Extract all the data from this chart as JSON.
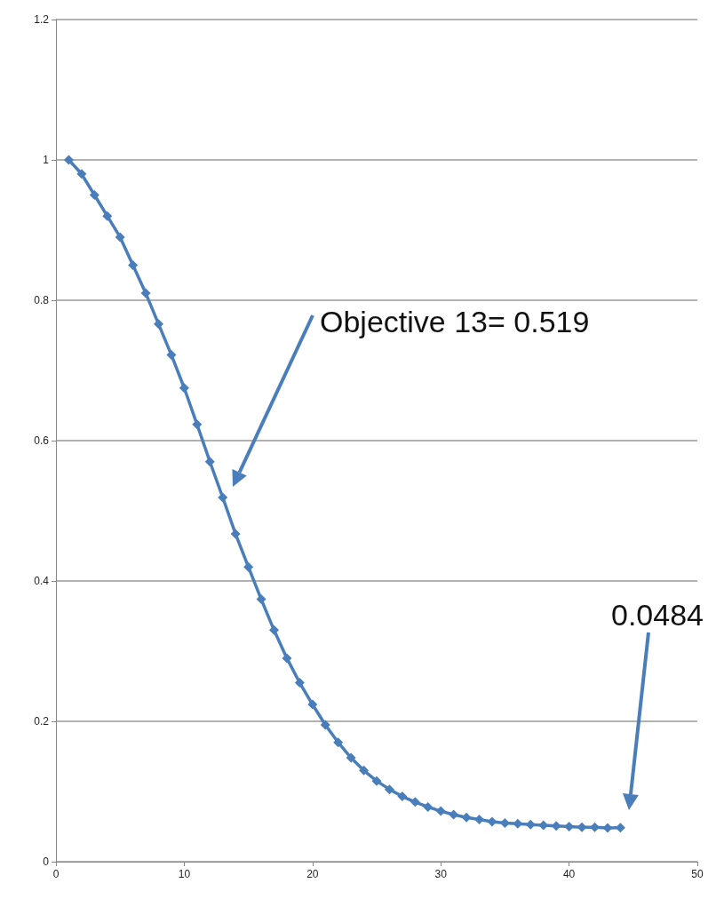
{
  "chart_data": {
    "type": "line",
    "x": [
      1,
      2,
      3,
      4,
      5,
      6,
      7,
      8,
      9,
      10,
      11,
      12,
      13,
      14,
      15,
      16,
      17,
      18,
      19,
      20,
      21,
      22,
      23,
      24,
      25,
      26,
      27,
      28,
      29,
      30,
      31,
      32,
      33,
      34,
      35,
      36,
      37,
      38,
      39,
      40,
      41,
      42,
      43,
      44
    ],
    "series": [
      {
        "color": "#4a7ebb",
        "values": [
          1.0,
          0.98,
          0.95,
          0.92,
          0.89,
          0.85,
          0.81,
          0.766,
          0.722,
          0.675,
          0.623,
          0.57,
          0.519,
          0.467,
          0.42,
          0.374,
          0.33,
          0.29,
          0.255,
          0.224,
          0.195,
          0.17,
          0.148,
          0.13,
          0.115,
          0.103,
          0.093,
          0.085,
          0.078,
          0.072,
          0.067,
          0.063,
          0.06,
          0.057,
          0.055,
          0.054,
          0.053,
          0.052,
          0.051,
          0.05,
          0.049,
          0.049,
          0.048,
          0.0484
        ]
      }
    ],
    "xlim": [
      0,
      50
    ],
    "xticks": [
      0,
      10,
      20,
      30,
      40,
      50
    ],
    "ylim": [
      0,
      1.2
    ],
    "yticks": [
      0,
      0.2,
      0.4,
      0.6,
      0.8,
      1,
      1.2
    ],
    "grid": "y",
    "marker": "diamond",
    "line_style": "solid",
    "annotations": [
      "Objective 13= 0.519",
      "0.0484"
    ]
  }
}
